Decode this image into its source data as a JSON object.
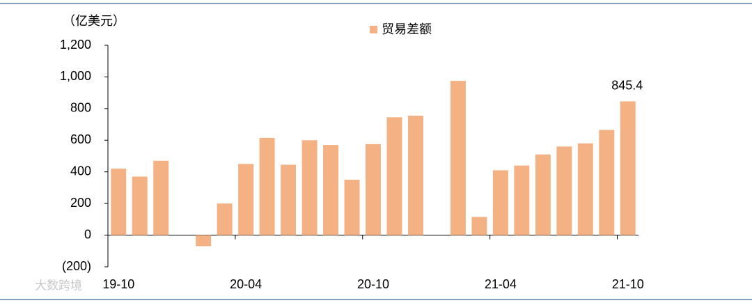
{
  "chart_data": {
    "type": "bar",
    "unit_label": "（亿美元）",
    "watermark": "大数跨境",
    "categories": [
      "19-10",
      null,
      null,
      null,
      null,
      null,
      "20-04",
      null,
      null,
      null,
      null,
      null,
      "20-10",
      null,
      null,
      null,
      null,
      null,
      "21-04",
      null,
      null,
      null,
      null,
      null,
      "21-10"
    ],
    "series": [
      {
        "name": "贸易差额",
        "color": "#f4b183",
        "values": [
          420,
          370,
          470,
          null,
          -70,
          200,
          450,
          615,
          445,
          600,
          570,
          350,
          575,
          745,
          755,
          null,
          975,
          115,
          410,
          440,
          510,
          560,
          580,
          665,
          845.4
        ]
      }
    ],
    "label_index": 24,
    "ylim": [
      -200,
      1200
    ],
    "yticks": [
      {
        "value": -200,
        "label": "(200)"
      },
      0,
      200,
      400,
      600,
      800,
      {
        "value": 1000,
        "label": "1,000"
      },
      {
        "value": 1200,
        "label": "1,200"
      }
    ]
  }
}
